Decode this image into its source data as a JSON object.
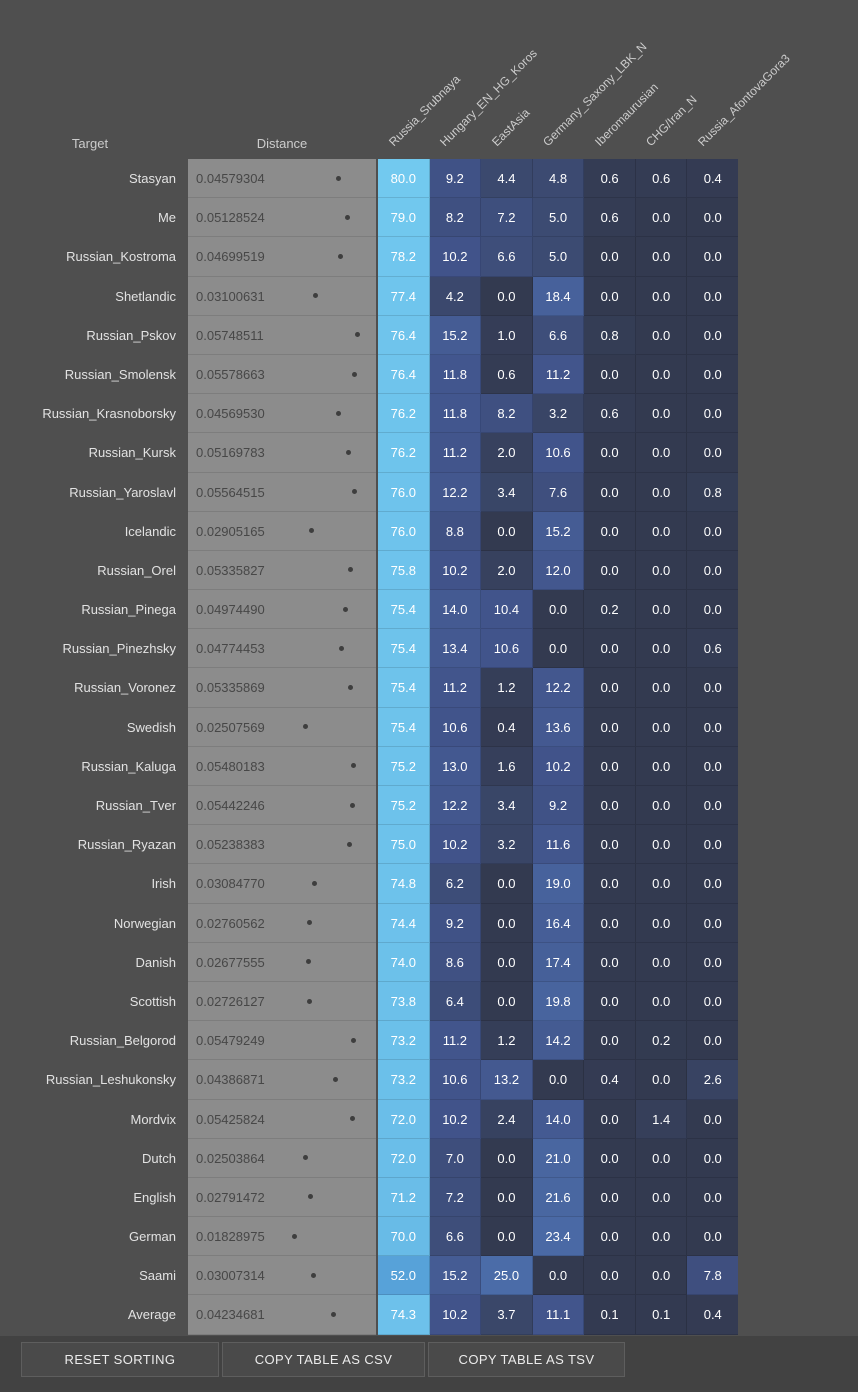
{
  "header": {
    "target_label": "Target",
    "distance_label": "Distance",
    "columns": [
      "Russia_Srubnaya",
      "Hungary_EN_HG_Koros",
      "EastAsia",
      "Germany_Saxony_LBK_N",
      "Iberomaurusian",
      "CHG/Iran_N",
      "Russia_AfontovaGora3"
    ]
  },
  "rows": [
    {
      "target": "Stasyan",
      "distance": "0.04579304",
      "values": [
        80.0,
        9.2,
        4.4,
        4.8,
        0.6,
        0.6,
        0.4
      ]
    },
    {
      "target": "Me",
      "distance": "0.05128524",
      "values": [
        79.0,
        8.2,
        7.2,
        5.0,
        0.6,
        0.0,
        0.0
      ]
    },
    {
      "target": "Russian_Kostroma",
      "distance": "0.04699519",
      "values": [
        78.2,
        10.2,
        6.6,
        5.0,
        0.0,
        0.0,
        0.0
      ]
    },
    {
      "target": "Shetlandic",
      "distance": "0.03100631",
      "values": [
        77.4,
        4.2,
        0.0,
        18.4,
        0.0,
        0.0,
        0.0
      ]
    },
    {
      "target": "Russian_Pskov",
      "distance": "0.05748511",
      "values": [
        76.4,
        15.2,
        1.0,
        6.6,
        0.8,
        0.0,
        0.0
      ]
    },
    {
      "target": "Russian_Smolensk",
      "distance": "0.05578663",
      "values": [
        76.4,
        11.8,
        0.6,
        11.2,
        0.0,
        0.0,
        0.0
      ]
    },
    {
      "target": "Russian_Krasnoborsky",
      "distance": "0.04569530",
      "values": [
        76.2,
        11.8,
        8.2,
        3.2,
        0.6,
        0.0,
        0.0
      ]
    },
    {
      "target": "Russian_Kursk",
      "distance": "0.05169783",
      "values": [
        76.2,
        11.2,
        2.0,
        10.6,
        0.0,
        0.0,
        0.0
      ]
    },
    {
      "target": "Russian_Yaroslavl",
      "distance": "0.05564515",
      "values": [
        76.0,
        12.2,
        3.4,
        7.6,
        0.0,
        0.0,
        0.8
      ]
    },
    {
      "target": "Icelandic",
      "distance": "0.02905165",
      "values": [
        76.0,
        8.8,
        0.0,
        15.2,
        0.0,
        0.0,
        0.0
      ]
    },
    {
      "target": "Russian_Orel",
      "distance": "0.05335827",
      "values": [
        75.8,
        10.2,
        2.0,
        12.0,
        0.0,
        0.0,
        0.0
      ]
    },
    {
      "target": "Russian_Pinega",
      "distance": "0.04974490",
      "values": [
        75.4,
        14.0,
        10.4,
        0.0,
        0.2,
        0.0,
        0.0
      ]
    },
    {
      "target": "Russian_Pinezhsky",
      "distance": "0.04774453",
      "values": [
        75.4,
        13.4,
        10.6,
        0.0,
        0.0,
        0.0,
        0.6
      ]
    },
    {
      "target": "Russian_Voronez",
      "distance": "0.05335869",
      "values": [
        75.4,
        11.2,
        1.2,
        12.2,
        0.0,
        0.0,
        0.0
      ]
    },
    {
      "target": "Swedish",
      "distance": "0.02507569",
      "values": [
        75.4,
        10.6,
        0.4,
        13.6,
        0.0,
        0.0,
        0.0
      ]
    },
    {
      "target": "Russian_Kaluga",
      "distance": "0.05480183",
      "values": [
        75.2,
        13.0,
        1.6,
        10.2,
        0.0,
        0.0,
        0.0
      ]
    },
    {
      "target": "Russian_Tver",
      "distance": "0.05442246",
      "values": [
        75.2,
        12.2,
        3.4,
        9.2,
        0.0,
        0.0,
        0.0
      ]
    },
    {
      "target": "Russian_Ryazan",
      "distance": "0.05238383",
      "values": [
        75.0,
        10.2,
        3.2,
        11.6,
        0.0,
        0.0,
        0.0
      ]
    },
    {
      "target": "Irish",
      "distance": "0.03084770",
      "values": [
        74.8,
        6.2,
        0.0,
        19.0,
        0.0,
        0.0,
        0.0
      ]
    },
    {
      "target": "Norwegian",
      "distance": "0.02760562",
      "values": [
        74.4,
        9.2,
        0.0,
        16.4,
        0.0,
        0.0,
        0.0
      ]
    },
    {
      "target": "Danish",
      "distance": "0.02677555",
      "values": [
        74.0,
        8.6,
        0.0,
        17.4,
        0.0,
        0.0,
        0.0
      ]
    },
    {
      "target": "Scottish",
      "distance": "0.02726127",
      "values": [
        73.8,
        6.4,
        0.0,
        19.8,
        0.0,
        0.0,
        0.0
      ]
    },
    {
      "target": "Russian_Belgorod",
      "distance": "0.05479249",
      "values": [
        73.2,
        11.2,
        1.2,
        14.2,
        0.0,
        0.2,
        0.0
      ]
    },
    {
      "target": "Russian_Leshukonsky",
      "distance": "0.04386871",
      "values": [
        73.2,
        10.6,
        13.2,
        0.0,
        0.4,
        0.0,
        2.6
      ]
    },
    {
      "target": "Mordvix",
      "distance": "0.05425824",
      "values": [
        72.0,
        10.2,
        2.4,
        14.0,
        0.0,
        1.4,
        0.0
      ]
    },
    {
      "target": "Dutch",
      "distance": "0.02503864",
      "values": [
        72.0,
        7.0,
        0.0,
        21.0,
        0.0,
        0.0,
        0.0
      ]
    },
    {
      "target": "English",
      "distance": "0.02791472",
      "values": [
        71.2,
        7.2,
        0.0,
        21.6,
        0.0,
        0.0,
        0.0
      ]
    },
    {
      "target": "German",
      "distance": "0.01828975",
      "values": [
        70.0,
        6.6,
        0.0,
        23.4,
        0.0,
        0.0,
        0.0
      ]
    },
    {
      "target": "Saami",
      "distance": "0.03007314",
      "values": [
        52.0,
        15.2,
        25.0,
        0.0,
        0.0,
        0.0,
        7.8
      ]
    },
    {
      "target": "Average",
      "distance": "0.04234681",
      "values": [
        74.3,
        10.2,
        3.7,
        11.1,
        0.1,
        0.1,
        0.4
      ]
    }
  ],
  "footer": {
    "buttons": [
      "RESET SORTING",
      "COPY TABLE AS CSV",
      "COPY TABLE AS TSV"
    ]
  },
  "colors": {
    "page_bg": "#4f4f4f",
    "footer_bg": "#424242",
    "button_bg": "#4a4a4a",
    "button_border": "#5e5e5e",
    "button_text": "#ececec",
    "target_text": "#e2e2e2",
    "header_text": "#cccccc",
    "distance_bg": "#8c8c8c",
    "distance_text": "#474747",
    "dot_color": "#3e3e3e",
    "ref_line": "#d4d4d4",
    "cell_text": "#ffffff",
    "scale": [
      {
        "v": 0,
        "c": "#333a50"
      },
      {
        "v": 5,
        "c": "#3c4b72"
      },
      {
        "v": 10,
        "c": "#41538a"
      },
      {
        "v": 15,
        "c": "#455c94"
      },
      {
        "v": 20,
        "c": "#48649e"
      },
      {
        "v": 25,
        "c": "#4b6ca8"
      },
      {
        "v": 52,
        "c": "#57a2d9"
      },
      {
        "v": 80,
        "c": "#72c9ef"
      }
    ]
  }
}
